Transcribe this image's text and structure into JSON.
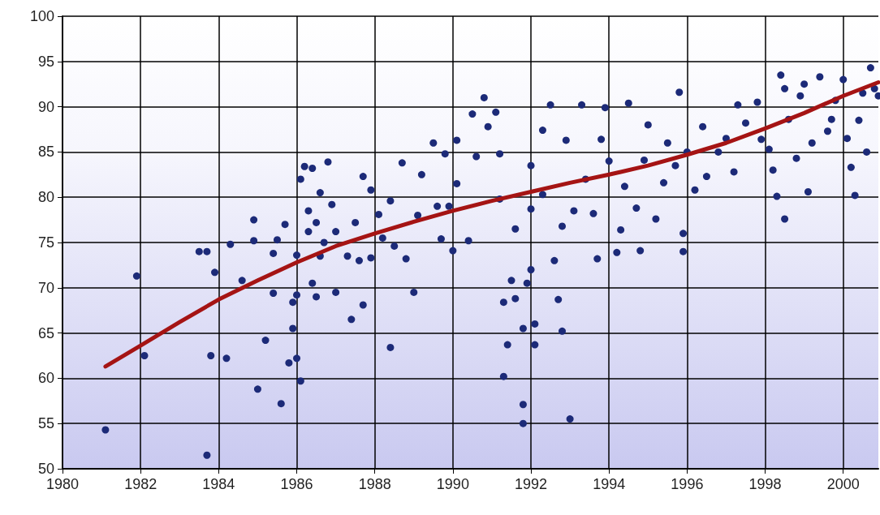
{
  "chart_data": {
    "type": "scatter",
    "xlim": [
      1980,
      2000.9
    ],
    "xticks": [
      1980,
      1982,
      1984,
      1986,
      1988,
      1990,
      1992,
      1994,
      1996,
      1998,
      2000
    ],
    "ylim": [
      50,
      100
    ],
    "yticks": [
      50,
      55,
      60,
      65,
      70,
      75,
      80,
      85,
      90,
      95,
      100
    ],
    "grid": true,
    "marker": "circle",
    "series": [
      {
        "type": "scatter",
        "color": "#1c2a78",
        "x": [
          1981.1,
          1981.9,
          1982.1,
          1983.5,
          1983.7,
          1983.8,
          1983.7,
          1983.9,
          1984.2,
          1984.3,
          1984.6,
          1984.9,
          1984.9,
          1985.0,
          1985.2,
          1985.4,
          1985.5,
          1985.4,
          1985.6,
          1985.7,
          1985.8,
          1985.9,
          1985.9,
          1986.0,
          1986.0,
          1986.1,
          1986.0,
          1986.1,
          1986.2,
          1986.3,
          1986.3,
          1986.4,
          1986.4,
          1986.5,
          1986.5,
          1986.6,
          1986.6,
          1986.7,
          1986.8,
          1986.9,
          1987.0,
          1987.0,
          1987.3,
          1987.4,
          1987.5,
          1987.6,
          1987.7,
          1987.7,
          1987.9,
          1987.9,
          1988.1,
          1988.2,
          1988.4,
          1988.4,
          1988.5,
          1988.7,
          1988.8,
          1989.0,
          1989.1,
          1989.2,
          1989.5,
          1989.6,
          1989.7,
          1989.8,
          1989.9,
          1990.0,
          1990.1,
          1990.1,
          1990.4,
          1990.5,
          1990.6,
          1990.8,
          1990.9,
          1991.1,
          1991.2,
          1991.2,
          1991.3,
          1991.3,
          1991.4,
          1991.5,
          1991.6,
          1991.6,
          1991.8,
          1991.8,
          1991.8,
          1991.9,
          1992.0,
          1992.0,
          1992.0,
          1992.1,
          1992.1,
          1992.3,
          1992.3,
          1992.5,
          1992.6,
          1992.7,
          1992.8,
          1992.8,
          1992.9,
          1993.0,
          1993.1,
          1993.3,
          1993.4,
          1993.6,
          1993.7,
          1993.8,
          1993.9,
          1994.0,
          1994.2,
          1994.3,
          1994.4,
          1994.5,
          1994.7,
          1994.8,
          1994.9,
          1995.0,
          1995.2,
          1995.4,
          1995.5,
          1995.7,
          1995.8,
          1995.9,
          1995.9,
          1996.0,
          1996.2,
          1996.4,
          1996.5,
          1996.8,
          1997.0,
          1997.2,
          1997.3,
          1997.5,
          1997.8,
          1997.9,
          1998.1,
          1998.2,
          1998.3,
          1998.4,
          1998.5,
          1998.6,
          1998.8,
          1998.9,
          1999.0,
          1999.1,
          1999.2,
          1999.4,
          1999.6,
          1999.8,
          2000.0,
          2000.1,
          2000.2,
          2000.3,
          2000.4,
          2000.5,
          2000.7,
          2000.8,
          2000.9,
          2000.6,
          1998.5,
          1999.7
        ],
        "values": [
          54.3,
          71.3,
          62.5,
          74.0,
          74.0,
          62.5,
          51.5,
          71.7,
          62.2,
          74.8,
          70.8,
          75.2,
          77.5,
          58.8,
          64.2,
          69.4,
          75.3,
          73.8,
          57.2,
          77.0,
          61.7,
          65.5,
          68.4,
          69.2,
          62.2,
          59.7,
          73.6,
          82.0,
          83.4,
          78.5,
          76.2,
          83.2,
          70.5,
          69.0,
          77.2,
          80.5,
          73.5,
          75.0,
          83.9,
          79.2,
          76.2,
          69.5,
          73.5,
          66.5,
          77.2,
          73.0,
          68.1,
          82.3,
          80.8,
          73.3,
          78.1,
          75.5,
          63.4,
          79.6,
          74.6,
          83.8,
          73.2,
          69.5,
          78.0,
          82.5,
          86.0,
          79.0,
          75.4,
          84.8,
          79.0,
          74.1,
          86.3,
          81.5,
          75.2,
          89.2,
          84.5,
          91.0,
          87.8,
          89.4,
          84.8,
          79.8,
          68.4,
          60.2,
          63.7,
          70.8,
          68.8,
          76.5,
          65.5,
          57.1,
          55.0,
          70.5,
          72.0,
          78.7,
          83.5,
          63.7,
          66.0,
          80.3,
          87.4,
          90.2,
          73.0,
          68.7,
          65.2,
          76.8,
          86.3,
          55.5,
          78.5,
          90.2,
          82.0,
          78.2,
          73.2,
          86.4,
          89.9,
          84.0,
          73.9,
          76.4,
          81.2,
          90.4,
          78.8,
          74.1,
          84.1,
          88.0,
          77.6,
          81.6,
          86.0,
          83.5,
          91.6,
          74.0,
          76.0,
          85.0,
          80.8,
          87.8,
          82.3,
          85.0,
          86.5,
          82.8,
          90.2,
          88.2,
          90.5,
          86.4,
          85.3,
          83.0,
          80.1,
          93.5,
          77.6,
          88.6,
          84.3,
          91.2,
          92.5,
          80.6,
          86.0,
          93.3,
          87.3,
          90.7,
          93.0,
          86.5,
          83.3,
          80.2,
          88.5,
          91.5,
          94.3,
          92.0,
          91.2,
          85.0,
          92.0,
          88.6
        ]
      },
      {
        "type": "line",
        "color": "#a51414",
        "marker": "none",
        "line_style": "solid",
        "x": [
          1981.1,
          1982,
          1983,
          1984,
          1985,
          1986,
          1987,
          1988,
          1989,
          1990,
          1991,
          1992,
          1993,
          1994,
          1995,
          1996,
          1997,
          1998,
          1999,
          2000,
          2000.9
        ],
        "values": [
          61.3,
          63.6,
          66.2,
          68.7,
          70.8,
          72.8,
          74.6,
          76.0,
          77.3,
          78.5,
          79.6,
          80.6,
          81.6,
          82.5,
          83.5,
          84.7,
          86.0,
          87.6,
          89.3,
          91.2,
          92.7
        ]
      }
    ]
  }
}
